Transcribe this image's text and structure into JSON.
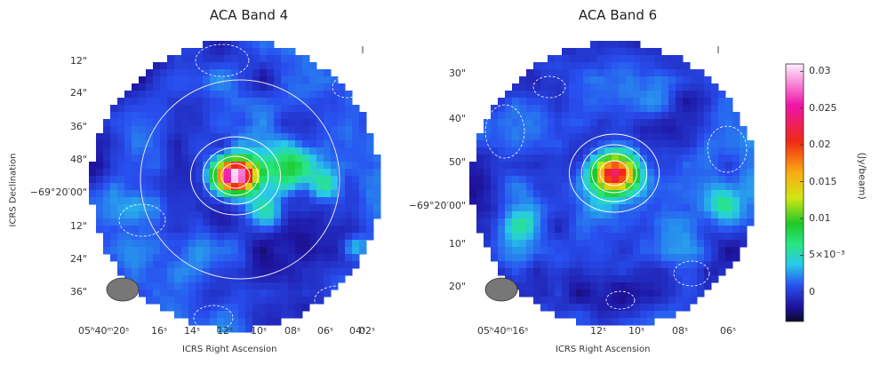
{
  "chart_data": [
    {
      "type": "heatmap",
      "title": "ACA  Band 4",
      "xlabel": "ICRS Right Ascension",
      "ylabel": "ICRS Declination",
      "x_ticks": [
        "05ʰ40ᵐ20ˢ",
        "16ˢ",
        "14ˢ",
        "12ˢ",
        "10ˢ",
        "08ˢ",
        "06ˢ",
        "04ˢ",
        "02ˢ"
      ],
      "y_ticks": [
        "12\"",
        "24\"",
        "36\"",
        "48\"",
        "−69°20′00\"",
        "12\"",
        "24\"",
        "36\""
      ],
      "source_peak_jy_per_beam": 0.031,
      "beam": "ellipse, lower-left",
      "circle_overlay": true
    },
    {
      "type": "heatmap",
      "title": "ACA  Band 6",
      "xlabel": "ICRS Right Ascension",
      "ylabel": "",
      "x_ticks": [
        "05ʰ40ᵐ16ˢ",
        "12ˢ",
        "10ˢ",
        "08ˢ",
        "06ˢ"
      ],
      "y_ticks": [
        "30\"",
        "40\"",
        "50\"",
        "−69°20′00\"",
        "10\"",
        "20\""
      ],
      "source_peak_jy_per_beam": 0.025,
      "beam": "ellipse, lower-left",
      "circle_overlay": false
    }
  ],
  "colorbar": {
    "label": "(Jy/beam)",
    "min": -0.004,
    "max": 0.031,
    "ticks": [
      {
        "value": 0.03,
        "label": "0.03"
      },
      {
        "value": 0.025,
        "label": "0.025"
      },
      {
        "value": 0.02,
        "label": "0.02"
      },
      {
        "value": 0.015,
        "label": "0.015"
      },
      {
        "value": 0.01,
        "label": "0.01"
      },
      {
        "value": 0.005,
        "label": "5×10⁻³"
      },
      {
        "value": 0,
        "label": "0"
      }
    ]
  }
}
